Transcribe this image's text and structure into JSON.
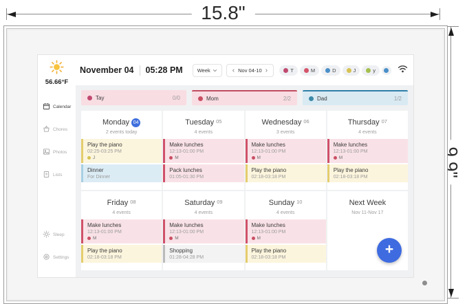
{
  "dimensions": {
    "width_label": "15.8\"",
    "height_label": "9.9\""
  },
  "screen": {
    "sidebar": {
      "weather": {
        "temp": "56.66°F"
      },
      "items": [
        {
          "label": "Calendar",
          "icon": "calendar-icon",
          "active": true,
          "bottom": false
        },
        {
          "label": "Chores",
          "icon": "chores-icon",
          "active": false,
          "bottom": false
        },
        {
          "label": "Photos",
          "icon": "photos-icon",
          "active": false,
          "bottom": false
        },
        {
          "label": "Lists",
          "icon": "lists-icon",
          "active": false,
          "bottom": false
        },
        {
          "label": "Sleep",
          "icon": "sleep-icon",
          "active": false,
          "bottom": true
        },
        {
          "label": "Settings",
          "icon": "settings-icon",
          "active": false,
          "bottom": true
        }
      ]
    },
    "topbar": {
      "date": "November 04",
      "time": "05:28 PM",
      "view": "Week",
      "prev": "‹",
      "range": "Nov 04-10",
      "next": "›",
      "members": [
        {
          "initial": "T",
          "color": "#c04970"
        },
        {
          "initial": "M",
          "color": "#d4556b"
        },
        {
          "initial": "D",
          "color": "#4a8fc7"
        },
        {
          "initial": "J",
          "color": "#d6c253"
        },
        {
          "initial": "y",
          "color": "#a4bf4e"
        },
        {
          "initial": "",
          "color": "#4a8fc7"
        }
      ]
    },
    "filters": [
      {
        "name": "Tay",
        "count": "0/0",
        "bg": "#f8dde3",
        "dot": "#c04970",
        "accent": ""
      },
      {
        "name": "Mom",
        "count": "2/2",
        "bg": "#f8dde3",
        "dot": "#c94f63",
        "accent": "#c24b60"
      },
      {
        "name": "Dad",
        "count": "1/2",
        "bg": "#d9eaf3",
        "dot": "#3d89a8",
        "accent": "#2e7fa8"
      }
    ],
    "event_colors": {
      "pink": {
        "bg": "#f9e2e7",
        "border": "#d0516a"
      },
      "yellow": {
        "bg": "#fcf5dd",
        "border": "#e4cd6d"
      },
      "blue": {
        "bg": "#dcecf5",
        "border": "#a8d0e4"
      },
      "gray": {
        "bg": "#f3f3f3",
        "border": "#bbbbbb"
      }
    },
    "days": [
      {
        "name": "Monday",
        "date": "04",
        "badge": true,
        "subtitle": "2 events today",
        "events": [
          {
            "title": "Play the piano",
            "time": "02:25-03:25 PM",
            "attendee": "J",
            "attendee_color": "#d6c253",
            "type": "yellow"
          },
          {
            "title": "Dinner",
            "subtitle": "For Dinner",
            "type": "blue"
          }
        ]
      },
      {
        "name": "Tuesday",
        "date": "05",
        "badge": false,
        "subtitle": "4 events",
        "events": [
          {
            "title": "Make lunches",
            "time": "12:13-01:00 PM",
            "attendee": "M",
            "attendee_color": "#c94f63",
            "type": "pink"
          },
          {
            "title": "Pack lunches",
            "time": "01:05-01:30 PM",
            "type": "pink"
          }
        ]
      },
      {
        "name": "Wednesday",
        "date": "06",
        "badge": false,
        "subtitle": "3 events",
        "events": [
          {
            "title": "Make lunches",
            "time": "12:13-01:00 PM",
            "attendee": "M",
            "attendee_color": "#c94f63",
            "type": "pink"
          },
          {
            "title": "Play the piano",
            "time": "02:18-03:18 PM",
            "type": "yellow"
          }
        ]
      },
      {
        "name": "Thursday",
        "date": "07",
        "badge": false,
        "subtitle": "4 events",
        "events": [
          {
            "title": "Make lunches",
            "time": "12:13-01:00 PM",
            "attendee": "M",
            "attendee_color": "#c94f63",
            "type": "pink"
          },
          {
            "title": "Play the piano",
            "time": "02:18-03:18 PM",
            "type": "yellow"
          }
        ]
      },
      {
        "name": "Friday",
        "date": "08",
        "badge": false,
        "subtitle": "4 events",
        "events": [
          {
            "title": "Make lunches",
            "time": "12:13-01:00 PM",
            "attendee": "M",
            "attendee_color": "#c94f63",
            "type": "pink"
          },
          {
            "title": "Play the piano",
            "time": "02:18-03:18 PM",
            "type": "yellow"
          }
        ]
      },
      {
        "name": "Saturday",
        "date": "09",
        "badge": false,
        "subtitle": "4 events",
        "events": [
          {
            "title": "Make lunches",
            "time": "12:13-01:00 PM",
            "attendee": "M",
            "attendee_color": "#c94f63",
            "type": "pink"
          },
          {
            "title": "Shopping",
            "time": "01:28-04:28 PM",
            "type": "gray"
          }
        ]
      },
      {
        "name": "Sunday",
        "date": "10",
        "badge": false,
        "subtitle": "4 events",
        "events": [
          {
            "title": "Make lunches",
            "time": "12:13-01:00 PM",
            "attendee": "M",
            "attendee_color": "#c94f63",
            "type": "pink"
          },
          {
            "title": "Play the piano",
            "time": "02:18-03:18 PM",
            "type": "yellow"
          }
        ]
      },
      {
        "name": "Next Week",
        "date": "",
        "badge": false,
        "subtitle": "Nov 11-Nov 17",
        "events": []
      }
    ],
    "fab_label": "+"
  }
}
